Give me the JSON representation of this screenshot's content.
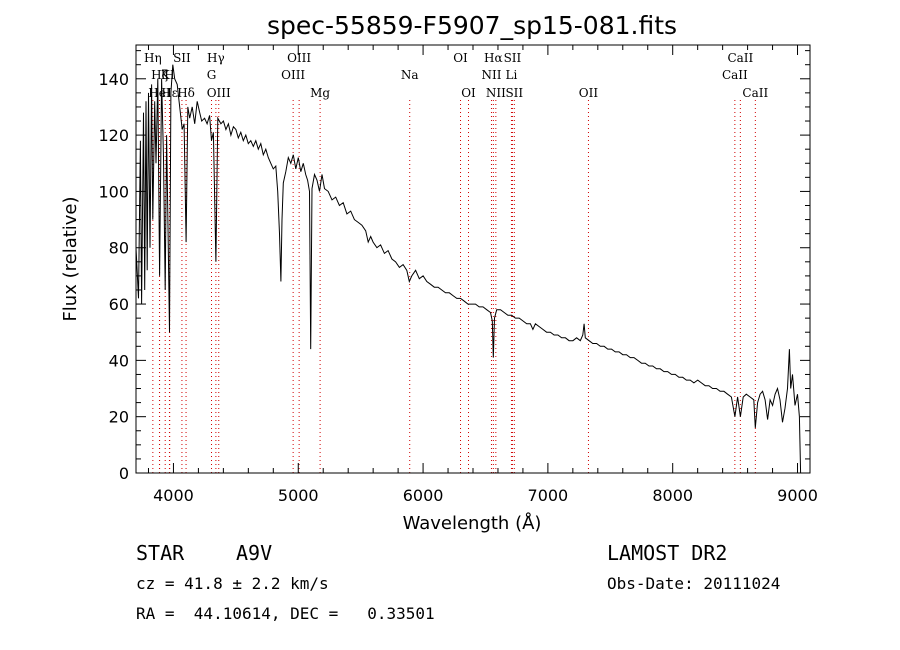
{
  "chart_data": {
    "type": "line",
    "title": "spec-55859-F5907_sp15-081.fits",
    "xlabel": "Wavelength (Å)",
    "ylabel": "Flux (relative)",
    "xlim": [
      3700,
      9100
    ],
    "ylim": [
      0,
      152
    ],
    "xticks": [
      4000,
      5000,
      6000,
      7000,
      8000,
      9000
    ],
    "yticks": [
      0,
      20,
      40,
      60,
      80,
      100,
      120,
      140
    ],
    "grid": false,
    "spectrum": [
      [
        3700,
        80
      ],
      [
        3720,
        62
      ],
      [
        3735,
        118
      ],
      [
        3745,
        60
      ],
      [
        3760,
        128
      ],
      [
        3770,
        65
      ],
      [
        3780,
        132
      ],
      [
        3790,
        72
      ],
      [
        3800,
        135
      ],
      [
        3812,
        80
      ],
      [
        3825,
        138
      ],
      [
        3835,
        90
      ],
      [
        3850,
        132
      ],
      [
        3860,
        110
      ],
      [
        3875,
        140
      ],
      [
        3889,
        70
      ],
      [
        3905,
        140
      ],
      [
        3920,
        112
      ],
      [
        3934,
        65
      ],
      [
        3945,
        120
      ],
      [
        3955,
        92
      ],
      [
        3968,
        50
      ],
      [
        3980,
        135
      ],
      [
        3995,
        145
      ],
      [
        4010,
        140
      ],
      [
        4030,
        138
      ],
      [
        4050,
        130
      ],
      [
        4070,
        122
      ],
      [
        4085,
        124
      ],
      [
        4101,
        82
      ],
      [
        4115,
        130
      ],
      [
        4130,
        126
      ],
      [
        4150,
        130
      ],
      [
        4170,
        124
      ],
      [
        4190,
        132
      ],
      [
        4210,
        128
      ],
      [
        4226,
        125
      ],
      [
        4250,
        126
      ],
      [
        4270,
        124
      ],
      [
        4290,
        127
      ],
      [
        4305,
        118
      ],
      [
        4320,
        121
      ],
      [
        4340,
        75
      ],
      [
        4355,
        126
      ],
      [
        4380,
        124
      ],
      [
        4400,
        125
      ],
      [
        4420,
        122
      ],
      [
        4440,
        124
      ],
      [
        4460,
        120
      ],
      [
        4480,
        123
      ],
      [
        4500,
        122
      ],
      [
        4520,
        119
      ],
      [
        4540,
        121
      ],
      [
        4560,
        118
      ],
      [
        4580,
        120
      ],
      [
        4600,
        117
      ],
      [
        4620,
        118
      ],
      [
        4640,
        116
      ],
      [
        4660,
        118
      ],
      [
        4680,
        115
      ],
      [
        4700,
        117
      ],
      [
        4720,
        113
      ],
      [
        4740,
        115
      ],
      [
        4760,
        112
      ],
      [
        4780,
        110
      ],
      [
        4800,
        108
      ],
      [
        4820,
        109
      ],
      [
        4835,
        100
      ],
      [
        4850,
        85
      ],
      [
        4861,
        68
      ],
      [
        4870,
        90
      ],
      [
        4880,
        103
      ],
      [
        4900,
        107
      ],
      [
        4920,
        112
      ],
      [
        4940,
        110
      ],
      [
        4960,
        113
      ],
      [
        4980,
        108
      ],
      [
        5000,
        112
      ],
      [
        5020,
        107
      ],
      [
        5040,
        110
      ],
      [
        5060,
        106
      ],
      [
        5075,
        104
      ],
      [
        5090,
        100
      ],
      [
        5100,
        44
      ],
      [
        5110,
        101
      ],
      [
        5130,
        106
      ],
      [
        5150,
        104
      ],
      [
        5170,
        100
      ],
      [
        5190,
        106
      ],
      [
        5210,
        101
      ],
      [
        5240,
        100
      ],
      [
        5270,
        97
      ],
      [
        5300,
        98
      ],
      [
        5330,
        95
      ],
      [
        5360,
        96
      ],
      [
        5390,
        92
      ],
      [
        5420,
        93
      ],
      [
        5450,
        90
      ],
      [
        5480,
        89
      ],
      [
        5510,
        88
      ],
      [
        5540,
        86
      ],
      [
        5560,
        82
      ],
      [
        5580,
        84
      ],
      [
        5600,
        82
      ],
      [
        5630,
        80
      ],
      [
        5660,
        81
      ],
      [
        5690,
        78
      ],
      [
        5720,
        79
      ],
      [
        5750,
        76
      ],
      [
        5780,
        75
      ],
      [
        5810,
        73
      ],
      [
        5840,
        74
      ],
      [
        5870,
        72
      ],
      [
        5890,
        68
      ],
      [
        5910,
        70
      ],
      [
        5940,
        72
      ],
      [
        5970,
        69
      ],
      [
        6000,
        70
      ],
      [
        6030,
        68
      ],
      [
        6060,
        67
      ],
      [
        6090,
        66
      ],
      [
        6120,
        66
      ],
      [
        6150,
        65
      ],
      [
        6180,
        64
      ],
      [
        6210,
        64
      ],
      [
        6240,
        63
      ],
      [
        6270,
        62
      ],
      [
        6300,
        62
      ],
      [
        6330,
        61
      ],
      [
        6360,
        60
      ],
      [
        6390,
        60
      ],
      [
        6420,
        60
      ],
      [
        6450,
        59
      ],
      [
        6480,
        59
      ],
      [
        6510,
        58
      ],
      [
        6540,
        57
      ],
      [
        6555,
        54
      ],
      [
        6563,
        41
      ],
      [
        6572,
        55
      ],
      [
        6590,
        58
      ],
      [
        6620,
        58
      ],
      [
        6650,
        57
      ],
      [
        6680,
        56
      ],
      [
        6710,
        56
      ],
      [
        6740,
        55
      ],
      [
        6770,
        55
      ],
      [
        6800,
        54
      ],
      [
        6830,
        53
      ],
      [
        6860,
        53
      ],
      [
        6880,
        51
      ],
      [
        6900,
        53
      ],
      [
        6930,
        52
      ],
      [
        6960,
        51
      ],
      [
        6990,
        50
      ],
      [
        7020,
        50
      ],
      [
        7050,
        49
      ],
      [
        7080,
        49
      ],
      [
        7110,
        48
      ],
      [
        7140,
        48
      ],
      [
        7170,
        47
      ],
      [
        7200,
        47
      ],
      [
        7230,
        48
      ],
      [
        7260,
        47
      ],
      [
        7280,
        49
      ],
      [
        7290,
        53
      ],
      [
        7300,
        48
      ],
      [
        7330,
        47
      ],
      [
        7360,
        46
      ],
      [
        7390,
        46
      ],
      [
        7420,
        45
      ],
      [
        7450,
        45
      ],
      [
        7480,
        44
      ],
      [
        7510,
        44
      ],
      [
        7540,
        43
      ],
      [
        7570,
        43
      ],
      [
        7600,
        42
      ],
      [
        7630,
        42
      ],
      [
        7660,
        41
      ],
      [
        7690,
        41
      ],
      [
        7720,
        40
      ],
      [
        7750,
        39
      ],
      [
        7780,
        39
      ],
      [
        7810,
        38
      ],
      [
        7840,
        38
      ],
      [
        7870,
        37
      ],
      [
        7900,
        37
      ],
      [
        7930,
        36
      ],
      [
        7960,
        36
      ],
      [
        7990,
        35
      ],
      [
        8020,
        35
      ],
      [
        8050,
        34
      ],
      [
        8080,
        34
      ],
      [
        8110,
        33
      ],
      [
        8140,
        33
      ],
      [
        8170,
        32
      ],
      [
        8200,
        33
      ],
      [
        8230,
        32
      ],
      [
        8260,
        31
      ],
      [
        8290,
        31
      ],
      [
        8320,
        30
      ],
      [
        8350,
        30
      ],
      [
        8380,
        29
      ],
      [
        8410,
        29
      ],
      [
        8440,
        28
      ],
      [
        8470,
        27
      ],
      [
        8498,
        20
      ],
      [
        8520,
        27
      ],
      [
        8542,
        20
      ],
      [
        8565,
        27
      ],
      [
        8590,
        28
      ],
      [
        8620,
        27
      ],
      [
        8650,
        26
      ],
      [
        8662,
        16
      ],
      [
        8680,
        25
      ],
      [
        8700,
        28
      ],
      [
        8720,
        29
      ],
      [
        8740,
        26
      ],
      [
        8760,
        19
      ],
      [
        8780,
        26
      ],
      [
        8800,
        24
      ],
      [
        8820,
        28
      ],
      [
        8840,
        30
      ],
      [
        8860,
        26
      ],
      [
        8880,
        18
      ],
      [
        8900,
        23
      ],
      [
        8920,
        30
      ],
      [
        8935,
        44
      ],
      [
        8945,
        30
      ],
      [
        8960,
        35
      ],
      [
        8980,
        24
      ],
      [
        9000,
        28
      ],
      [
        9015,
        20
      ],
      [
        9025,
        0
      ]
    ],
    "lines": [
      {
        "label": "Hη",
        "wave": 3835,
        "row": 1
      },
      {
        "label": "Hδ",
        "wave": 4101,
        "row": 4
      },
      {
        "label": "Hγ",
        "wave": 4340,
        "row": 1
      },
      {
        "label": "Hα",
        "wave": 6563,
        "row": 1
      },
      {
        "label": "Hζ",
        "wave": 3889,
        "row": 2
      },
      {
        "label": "Hε",
        "wave": 3970,
        "row": 4
      },
      {
        "label": "HeI",
        "wave": 3888,
        "row": 3
      },
      {
        "label": "K",
        "wave": 3934,
        "row": 2
      },
      {
        "label": "H",
        "wave": 3968,
        "row": 2
      },
      {
        "label": "SII",
        "wave": 4068,
        "row": 1
      },
      {
        "label": "G",
        "wave": 4305,
        "row": 2
      },
      {
        "label": "OIII",
        "wave": 4363,
        "row": 3
      },
      {
        "label": "OIII",
        "wave": 4959,
        "row": 2
      },
      {
        "label": "OIII",
        "wave": 5007,
        "row": 1
      },
      {
        "label": "Mg",
        "wave": 5175,
        "row": 3
      },
      {
        "label": "Na",
        "wave": 5893,
        "row": 2
      },
      {
        "label": "OI",
        "wave": 6300,
        "row": 1
      },
      {
        "label": "OI",
        "wave": 6364,
        "row": 3
      },
      {
        "label": "NII",
        "wave": 6548,
        "row": 2
      },
      {
        "label": "NII",
        "wave": 6583,
        "row": 3
      },
      {
        "label": "SII",
        "wave": 6716,
        "row": 1
      },
      {
        "label": "SII",
        "wave": 6731,
        "row": 3
      },
      {
        "label": "Li",
        "wave": 6708,
        "row": 2
      },
      {
        "label": "OII",
        "wave": 7325,
        "row": 3
      },
      {
        "label": "CaII",
        "wave": 8498,
        "row": 2
      },
      {
        "label": "CaII",
        "wave": 8542,
        "row": 1
      },
      {
        "label": "CaII",
        "wave": 8662,
        "row": 3
      }
    ]
  },
  "footer": {
    "class_label": "STAR",
    "subclass": "A9V",
    "survey": "LAMOST DR2",
    "cz": "cz = 41.8 ± 2.2 km/s",
    "obs_date": "Obs-Date: 20111024",
    "coords": "RA =  44.10614, DEC =   0.33501"
  }
}
